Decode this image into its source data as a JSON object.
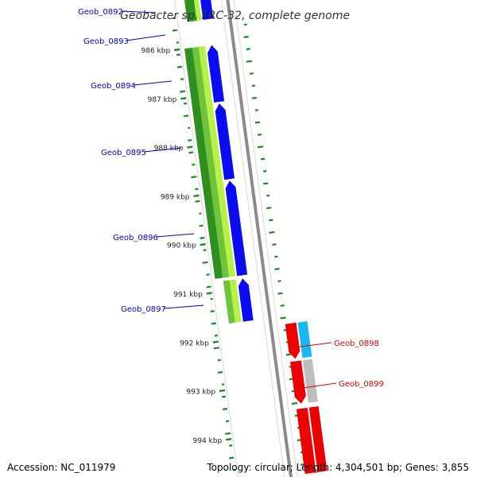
{
  "title": "Geobacter sp. FRC-32, complete genome",
  "footer": {
    "accession": "Accession: NC_011979",
    "summary": "Topology: circular; Length: 4,304,501 bp; Genes: 3,855"
  },
  "colors": {
    "blue": "#0b0bf0",
    "blue_dark": "#0000a0",
    "green_dark": "#2f8f1f",
    "green_mid": "#6fc43a",
    "green_light": "#b8f04a",
    "red": "#ee0000",
    "red_dark": "#a00000",
    "cyan": "#1ab6f0",
    "gray": "#bdbdbd",
    "backbone": "#8a8a8a",
    "gc_tick": "#1f8a1f",
    "label_blue": "#0000cc",
    "label_red": "#dd0000"
  },
  "kbp_ticks": [
    "986 kbp",
    "987 kbp",
    "988 kbp",
    "989 kbp",
    "990 kbp",
    "991 kbp",
    "992 kbp",
    "993 kbp",
    "994 kbp"
  ],
  "genes_left": [
    {
      "label": "Geob_0892"
    },
    {
      "label": "Geob_0893"
    },
    {
      "label": "Geob_0894"
    },
    {
      "label": "Geob_0895"
    },
    {
      "label": "Geob_0896"
    },
    {
      "label": "Geob_0897"
    }
  ],
  "genes_right": [
    {
      "label": "Geob_0898"
    },
    {
      "label": "Geob_0899"
    }
  ]
}
